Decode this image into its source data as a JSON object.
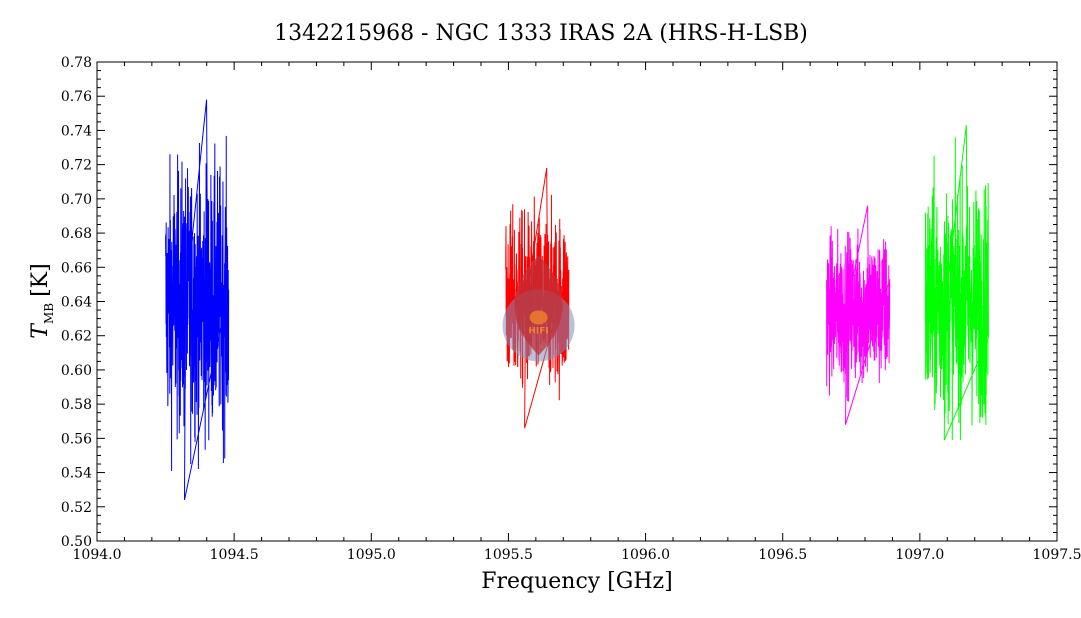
{
  "chart_data": {
    "type": "line",
    "title": "1342215968 - NGC 1333 IRAS 2A (HRS-H-LSB)",
    "xlabel": "Frequency [GHz]",
    "ylabel": {
      "symbol": "T",
      "subscript": "MB",
      "unit": "[K]"
    },
    "xlim": [
      1094.0,
      1097.5
    ],
    "ylim": [
      0.5,
      0.78
    ],
    "xticks": [
      "1094.0",
      "1094.5",
      "1095.0",
      "1095.5",
      "1096.0",
      "1096.5",
      "1097.0",
      "1097.5"
    ],
    "yticks": [
      "0.50",
      "0.52",
      "0.54",
      "0.56",
      "0.58",
      "0.60",
      "0.62",
      "0.64",
      "0.66",
      "0.68",
      "0.70",
      "0.72",
      "0.74",
      "0.76",
      "0.78"
    ],
    "grid": false,
    "series": [
      {
        "color": "#0000ff",
        "x_range": [
          1094.25,
          1094.48
        ],
        "center": 0.64,
        "min": 0.524,
        "max": 0.758
      },
      {
        "color": "#ff0000",
        "x_range": [
          1095.49,
          1095.72
        ],
        "center": 0.64,
        "min": 0.566,
        "max": 0.718
      },
      {
        "color": "#ff00ff",
        "x_range": [
          1096.66,
          1096.89
        ],
        "center": 0.635,
        "min": 0.568,
        "max": 0.696
      },
      {
        "color": "#00ff00",
        "x_range": [
          1097.02,
          1097.25
        ],
        "center": 0.64,
        "min": 0.559,
        "max": 0.743
      }
    ],
    "watermark": {
      "text": "HIFI",
      "x": 1095.61,
      "y": 0.626
    }
  }
}
